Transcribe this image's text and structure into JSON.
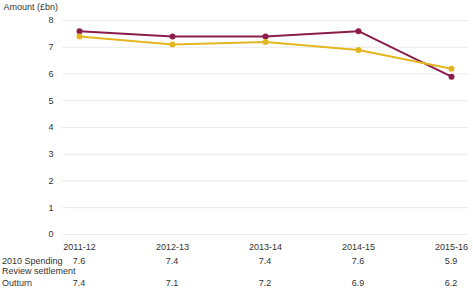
{
  "chart_data": {
    "type": "line",
    "y_label": "Amount (£bn)",
    "categories": [
      "2011-12",
      "2012-13",
      "2013-14",
      "2014-15",
      "2015-16"
    ],
    "series": [
      {
        "name": "2010 Spending Review settlement",
        "color": "#8c1d4b",
        "marker": "circle",
        "line_style": "solid",
        "values": [
          7.6,
          7.4,
          7.4,
          7.6,
          5.9
        ]
      },
      {
        "name": "Outturn",
        "color": "#e3b51e",
        "marker": "circle",
        "line_style": "solid",
        "values": [
          7.4,
          7.1,
          7.2,
          6.9,
          6.2
        ]
      }
    ],
    "ylim": [
      0,
      8
    ],
    "yticks": [
      0,
      1,
      2,
      3,
      4,
      5,
      6,
      7,
      8
    ],
    "grid": true,
    "data_labels": true
  }
}
